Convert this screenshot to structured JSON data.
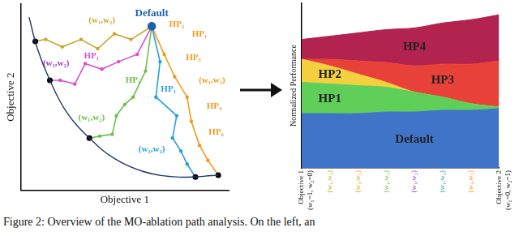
{
  "caption": "Figure 2: Overview of the MO-ablation path analysis. On the left, an",
  "chart_data": [
    {
      "type": "line",
      "x_label": "Objective 1",
      "y_label": "Objective 2",
      "xlim": [
        0,
        10
      ],
      "ylim": [
        0,
        10
      ],
      "tick_labels": false,
      "grid": false,
      "series": [
        {
          "color": "#1f3a66",
          "marker": "none",
          "x": [
            0.4,
            0.8,
            1.4,
            2.2,
            3.3,
            4.5,
            5.9,
            7.6,
            9.5
          ],
          "values": [
            9.3,
            7.6,
            5.9,
            4.2,
            2.8,
            1.7,
            1.0,
            0.7,
            0.8
          ]
        },
        {
          "color": "#c9a62c",
          "marker": "circle",
          "x": [
            6.3,
            5.3,
            4.5,
            3.7,
            2.9,
            2.0,
            1.2,
            0.7
          ],
          "values": [
            8.8,
            8.1,
            8.4,
            7.6,
            8.1,
            7.7,
            8.1,
            8.0
          ]
        },
        {
          "color": "#d94fcf",
          "marker": "circle",
          "x": [
            6.3,
            5.6,
            4.7,
            3.9,
            3.1,
            2.6,
            1.9,
            1.4
          ],
          "values": [
            8.8,
            7.3,
            6.9,
            6.5,
            6.8,
            5.7,
            5.9,
            5.9
          ]
        },
        {
          "color": "#6cc04a",
          "marker": "circle",
          "x": [
            6.3,
            6.0,
            5.4,
            5.0,
            4.6,
            4.4,
            3.8,
            3.3
          ],
          "values": [
            8.8,
            6.4,
            5.0,
            4.6,
            4.0,
            3.0,
            2.9,
            2.8
          ]
        },
        {
          "color": "#2a9fd8",
          "marker": "circle",
          "x": [
            6.3,
            6.7,
            6.5,
            7.5,
            7.3,
            7.7,
            8.0,
            8.4
          ],
          "values": [
            8.8,
            6.9,
            5.0,
            4.0,
            2.8,
            2.1,
            1.4,
            0.7
          ]
        },
        {
          "color": "#f29a1a",
          "marker": "circle",
          "x": [
            6.3,
            6.9,
            7.4,
            8.0,
            8.2,
            8.6,
            9.0,
            9.5
          ],
          "values": [
            8.8,
            7.3,
            6.1,
            5.0,
            3.7,
            2.4,
            1.6,
            0.8
          ]
        }
      ],
      "annotations": [
        {
          "text": "Default",
          "color": "#1f5fa8",
          "x": 6.3,
          "y": 9.5
        },
        {
          "text": "(w₁,w₂)",
          "color": "#c9a62c",
          "x": 3.9,
          "y": 9.1
        },
        {
          "text": "(w₁,w₂)",
          "color": "#9b3fd0",
          "x": 1.7,
          "y": 6.8
        },
        {
          "text": "HP₁",
          "color": "#d94fcf",
          "x": 3.4,
          "y": 7.2
        },
        {
          "text": "HP₃",
          "color": "#6cc04a",
          "x": 5.4,
          "y": 5.9
        },
        {
          "text": "(w₁,w₂)",
          "color": "#6cc04a",
          "x": 3.4,
          "y": 3.9
        },
        {
          "text": "HP₁",
          "color": "#2a9fd8",
          "x": 7.1,
          "y": 5.4
        },
        {
          "text": "(w₁,w₂)",
          "color": "#2a9fd8",
          "x": 6.3,
          "y": 2.2
        },
        {
          "text": "HP₂",
          "color": "#f29a1a",
          "x": 7.5,
          "y": 8.9
        },
        {
          "text": "HP₁",
          "color": "#f29a1a",
          "x": 8.6,
          "y": 8.4
        },
        {
          "text": "HP₅",
          "color": "#f29a1a",
          "x": 8.3,
          "y": 7.1
        },
        {
          "text": "(w₁,w₂)",
          "color": "#f29a1a",
          "x": 9.2,
          "y": 5.9
        },
        {
          "text": "HP₄",
          "color": "#f29a1a",
          "x": 9.3,
          "y": 4.5
        },
        {
          "text": "HP₆",
          "color": "#f29a1a",
          "x": 9.4,
          "y": 3.1
        }
      ]
    },
    {
      "type": "area",
      "stacked": true,
      "y_label": "Normalized Performance",
      "ylim": [
        0,
        1
      ],
      "tick_labels": "x",
      "grid": false,
      "categories": [
        [
          "Objective 1",
          "(w₁=1, w₂=0)"
        ],
        "(w₁,w₂)",
        "(w₁,w₂)",
        "(w₁,w₂)",
        "(w₁,w₂)",
        "(w₁,w₂)",
        "(w₁,w₂)",
        [
          "Objective 2",
          "(w₁=0, w₂=1)"
        ]
      ],
      "series": [
        {
          "name": "Default",
          "color": "#3f74c9",
          "values": [
            0.33,
            0.33,
            0.33,
            0.34,
            0.34,
            0.35,
            0.35,
            0.36
          ]
        },
        {
          "name": "HP1",
          "color": "#5fcf5a",
          "values": [
            0.19,
            0.18,
            0.17,
            0.15,
            0.12,
            0.08,
            0.04,
            0.01
          ]
        },
        {
          "name": "HP2",
          "color": "#f4d03f",
          "values": [
            0.14,
            0.11,
            0.07,
            0.03,
            0,
            0,
            0,
            0
          ]
        },
        {
          "name": "HP3",
          "color": "#e8413a",
          "values": [
            0,
            0.04,
            0.08,
            0.12,
            0.16,
            0.2,
            0.24,
            0.28
          ]
        },
        {
          "name": "HP4",
          "color": "#b3234f",
          "values": [
            0.12,
            0.14,
            0.17,
            0.2,
            0.23,
            0.25,
            0.27,
            0.28
          ]
        }
      ]
    }
  ]
}
